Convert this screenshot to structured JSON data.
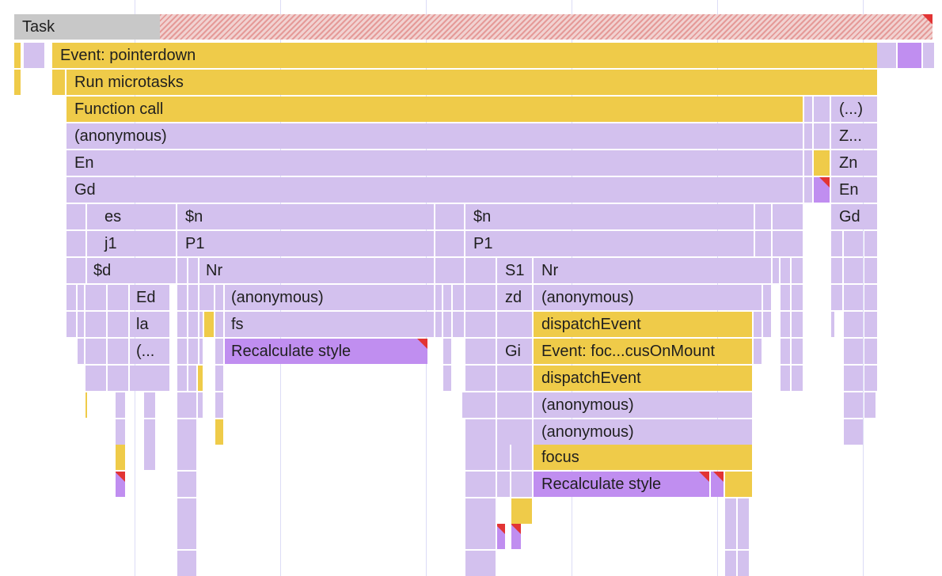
{
  "flame": {
    "task": {
      "label": "Task"
    },
    "event_pointerdown": {
      "label": "Event: pointerdown"
    },
    "run_microtasks": {
      "label": "Run microtasks"
    },
    "function_call": {
      "label": "Function call"
    },
    "anonymous_main": {
      "label": "(anonymous)"
    },
    "en_main": {
      "label": "En"
    },
    "gd_main": {
      "label": "Gd"
    },
    "row6": {
      "es": "es",
      "n_left": "$n",
      "n_right": "$n"
    },
    "row7": {
      "j1": "j1",
      "p1_left": "P1",
      "p1_right": "P1"
    },
    "row8": {
      "d": "$d",
      "nr_left": "Nr",
      "s1": "S1",
      "nr_right": "Nr"
    },
    "row9": {
      "ed": "Ed",
      "anonymous_left": "(anonymous)",
      "zd": "zd",
      "anonymous_right": "(anonymous)"
    },
    "row10": {
      "la": "la",
      "fs": "fs",
      "dispatch_event": "dispatchEvent"
    },
    "row11": {
      "ellipsis": "(...",
      "recalc_style": "Recalculate style",
      "gi": "Gi",
      "event_focus": "Event: foc...cusOnMount"
    },
    "right_stack": {
      "r3": "(...)",
      "r4": "Z...",
      "r5": "Zn",
      "r6": "En",
      "r7": "Gd"
    },
    "focus_stack": {
      "dispatch_event_2": "dispatchEvent",
      "anonymous_1": "(anonymous)",
      "anonymous_2": "(anonymous)",
      "focus": "focus",
      "recalc_style_2": "Recalculate style"
    }
  }
}
